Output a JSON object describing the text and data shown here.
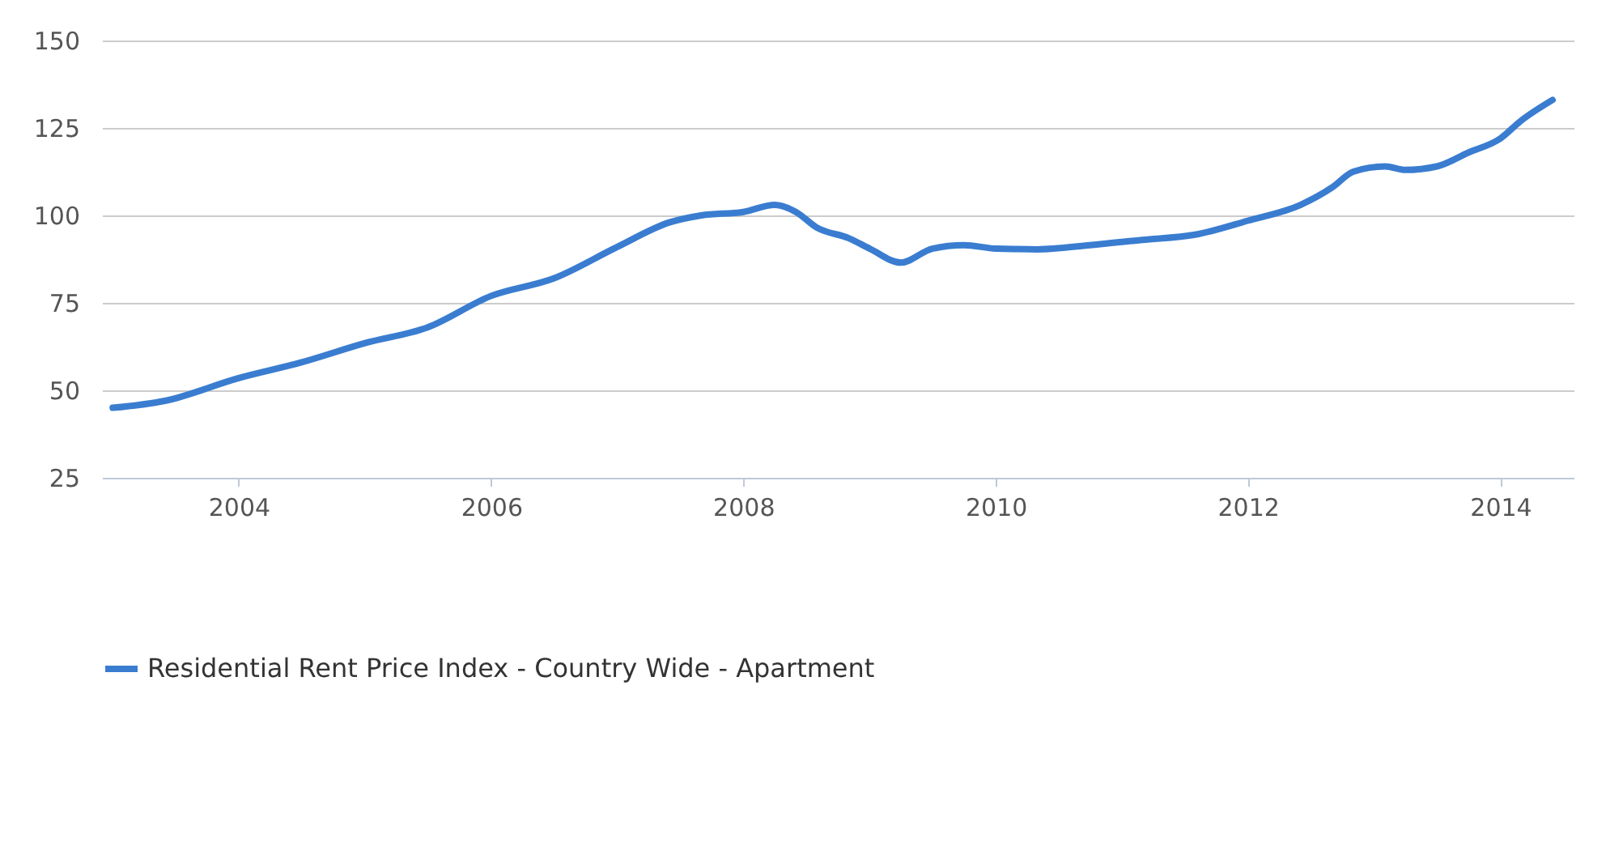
{
  "chart_data": {
    "type": "line",
    "x": [
      "2003-01",
      "2003-06",
      "2004-01",
      "2004-07",
      "2005-01",
      "2005-07",
      "2006-01",
      "2006-07",
      "2007-01",
      "2007-06",
      "2007-09",
      "2008-01",
      "2008-04",
      "2008-06",
      "2008-08",
      "2008-11",
      "2009-01",
      "2009-04",
      "2009-07",
      "2009-10",
      "2010-01",
      "2010-05",
      "2010-10",
      "2011-03",
      "2011-08",
      "2012-01",
      "2012-06",
      "2012-09",
      "2012-11",
      "2013-02",
      "2013-04",
      "2013-07",
      "2013-10",
      "2014-01",
      "2014-03",
      "2014-06"
    ],
    "series": [
      {
        "name": "Residential Rent Price Index - Country Wide - Apartment",
        "color": "#3a7dd0",
        "values": [
          45,
          47,
          53.5,
          58,
          63.5,
          68,
          77,
          82,
          91,
          98,
          100,
          101,
          103,
          101,
          96.5,
          93.5,
          90.5,
          86.5,
          90.5,
          91.5,
          90.5,
          90.3,
          91.5,
          93,
          94.5,
          98.5,
          103,
          108,
          112.5,
          114,
          113,
          114,
          118,
          122,
          127,
          133
        ]
      }
    ],
    "xlim": [
      "2002-12",
      "2014-08"
    ],
    "xticks": [
      "2004",
      "2006",
      "2008",
      "2010",
      "2012",
      "2014"
    ],
    "ylim": [
      25,
      150
    ],
    "yticks": [
      25,
      50,
      75,
      100,
      125,
      150
    ],
    "grid": "y",
    "legend": "bottom",
    "line_style": "solid",
    "marker": "none"
  }
}
